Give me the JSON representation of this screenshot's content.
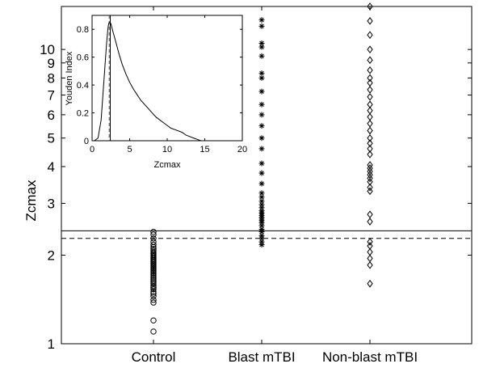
{
  "chart_data": [
    {
      "type": "scatter",
      "title": "",
      "xlabel": "",
      "ylabel": "Zcmax",
      "y_scale": "log",
      "ylim": [
        1,
        14
      ],
      "yticks": [
        1,
        2,
        3,
        4,
        5,
        6,
        7,
        8,
        9,
        10
      ],
      "categories": [
        "Control",
        "Blast mTBI",
        "Non-blast mTBI"
      ],
      "reference_lines": [
        {
          "style": "solid",
          "y": 2.42
        },
        {
          "style": "dashed",
          "y": 2.28
        }
      ],
      "series": [
        {
          "category": "Control",
          "marker": "circle",
          "values": [
            1.1,
            1.2,
            1.38,
            1.41,
            1.45,
            1.48,
            1.5,
            1.53,
            1.55,
            1.57,
            1.6,
            1.62,
            1.64,
            1.66,
            1.68,
            1.7,
            1.72,
            1.74,
            1.76,
            1.78,
            1.8,
            1.82,
            1.84,
            1.86,
            1.88,
            1.9,
            1.92,
            1.94,
            1.96,
            1.98,
            2.0,
            2.02,
            2.04,
            2.07,
            2.1,
            2.13,
            2.17,
            2.22,
            2.28,
            2.35,
            2.4
          ]
        },
        {
          "category": "Blast mTBI",
          "marker": "asterisk",
          "values": [
            2.17,
            2.22,
            2.28,
            2.33,
            2.4,
            2.45,
            2.52,
            2.58,
            2.63,
            2.68,
            2.73,
            2.78,
            2.83,
            2.9,
            2.97,
            3.05,
            3.15,
            3.25,
            3.5,
            3.8,
            4.1,
            4.6,
            5.0,
            5.5,
            6.0,
            6.5,
            7.2,
            8.0,
            8.3,
            9.5,
            10.2,
            10.5,
            12.0,
            12.6
          ]
        },
        {
          "category": "Non-blast mTBI",
          "marker": "diamond",
          "values": [
            1.6,
            1.85,
            1.95,
            2.05,
            2.15,
            2.22,
            2.6,
            2.75,
            3.3,
            3.4,
            3.55,
            3.65,
            3.75,
            3.85,
            3.95,
            4.05,
            4.4,
            4.6,
            4.8,
            5.0,
            5.3,
            5.6,
            5.9,
            6.2,
            6.5,
            6.9,
            7.3,
            7.7,
            8.0,
            8.5,
            9.2,
            10.0,
            11.2,
            12.5,
            14.0
          ]
        }
      ]
    },
    {
      "type": "line",
      "title": "",
      "xlabel": "Zcmax",
      "ylabel": "Youden Index",
      "xlim": [
        0,
        20
      ],
      "ylim": [
        0,
        0.9
      ],
      "xticks": [
        0,
        5,
        10,
        15,
        20
      ],
      "yticks": [
        0,
        0.2,
        0.4,
        0.6,
        0.8
      ],
      "x": [
        0.3,
        0.8,
        1.2,
        1.6,
        1.9,
        2.1,
        2.2,
        2.3,
        2.4,
        2.5,
        2.8,
        3.2,
        3.6,
        4.0,
        4.5,
        5.0,
        5.5,
        6.0,
        6.5,
        7.0,
        7.5,
        8.0,
        8.5,
        9.0,
        9.5,
        10.0,
        10.5,
        11.0,
        11.5,
        12.0,
        12.5,
        13.0,
        13.5,
        14.0,
        14.5
      ],
      "y": [
        0,
        0.02,
        0.15,
        0.45,
        0.68,
        0.8,
        0.84,
        0.85,
        0.85,
        0.84,
        0.78,
        0.7,
        0.62,
        0.55,
        0.48,
        0.42,
        0.37,
        0.33,
        0.29,
        0.26,
        0.23,
        0.2,
        0.17,
        0.15,
        0.13,
        0.11,
        0.09,
        0.08,
        0.07,
        0.06,
        0.04,
        0.03,
        0.02,
        0.01,
        0
      ],
      "reference_lines": [
        {
          "style": "solid",
          "x": 2.42
        },
        {
          "style": "dashed",
          "x": 2.28
        }
      ]
    }
  ]
}
